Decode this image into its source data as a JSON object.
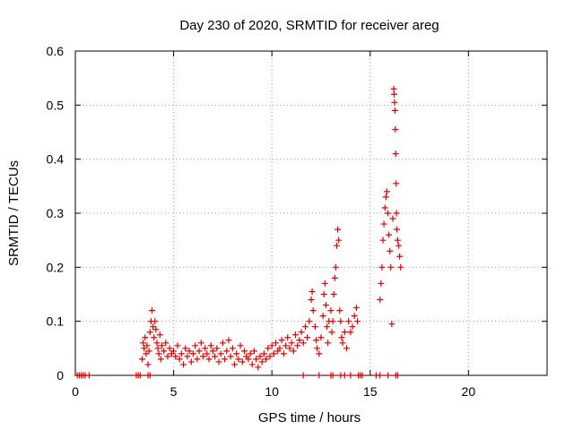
{
  "chart_data": {
    "type": "scatter",
    "title": "Day 230 of 2020, SRMTID for receiver areg",
    "xlabel": "GPS time / hours",
    "ylabel": "SRMTID / TECUs",
    "xlim": [
      0,
      24
    ],
    "ylim": [
      0,
      0.6
    ],
    "xticks": [
      0,
      5,
      10,
      15,
      20
    ],
    "xtick_labels": [
      "0",
      "5",
      "10",
      "15",
      "20"
    ],
    "yticks": [
      0,
      0.1,
      0.2,
      0.3,
      0.4,
      0.5,
      0.6
    ],
    "ytick_labels": [
      "0",
      "0.1",
      "0.2",
      "0.3",
      "0.4",
      "0.5",
      "0.6"
    ],
    "grid": true,
    "marker": "+",
    "marker_color": "#e00000",
    "series": [
      {
        "name": "SRMTID",
        "points": [
          [
            0.1,
            0
          ],
          [
            0.2,
            0
          ],
          [
            0.3,
            0
          ],
          [
            0.4,
            0
          ],
          [
            0.5,
            0
          ],
          [
            0.7,
            0
          ],
          [
            3.1,
            0
          ],
          [
            3.2,
            0
          ],
          [
            3.3,
            0
          ],
          [
            3.7,
            0
          ],
          [
            3.8,
            0
          ],
          [
            3.4,
            0.03
          ],
          [
            3.45,
            0.06
          ],
          [
            3.5,
            0.05
          ],
          [
            3.55,
            0.07
          ],
          [
            3.6,
            0.04
          ],
          [
            3.65,
            0.055
          ],
          [
            3.7,
            0.02
          ],
          [
            3.75,
            0.045
          ],
          [
            3.8,
            0.08
          ],
          [
            3.85,
            0.1
          ],
          [
            3.9,
            0.12
          ],
          [
            3.95,
            0.09
          ],
          [
            4.0,
            0.07
          ],
          [
            4.05,
            0.1
          ],
          [
            4.1,
            0.085
          ],
          [
            4.15,
            0.06
          ],
          [
            4.2,
            0.05
          ],
          [
            4.25,
            0.04
          ],
          [
            4.3,
            0.075
          ],
          [
            4.35,
            0.03
          ],
          [
            4.4,
            0.055
          ],
          [
            4.5,
            0.045
          ],
          [
            4.6,
            0.06
          ],
          [
            4.7,
            0.035
          ],
          [
            4.8,
            0.05
          ],
          [
            4.9,
            0.04
          ],
          [
            5.0,
            0.045
          ],
          [
            5.1,
            0.035
          ],
          [
            5.2,
            0.055
          ],
          [
            5.3,
            0.03
          ],
          [
            5.4,
            0.04
          ],
          [
            5.5,
            0.02
          ],
          [
            5.6,
            0.05
          ],
          [
            5.7,
            0.035
          ],
          [
            5.8,
            0.045
          ],
          [
            5.9,
            0.025
          ],
          [
            6.0,
            0.04
          ],
          [
            6.1,
            0.055
          ],
          [
            6.2,
            0.03
          ],
          [
            6.3,
            0.045
          ],
          [
            6.4,
            0.06
          ],
          [
            6.5,
            0.035
          ],
          [
            6.6,
            0.05
          ],
          [
            6.7,
            0.04
          ],
          [
            6.8,
            0.03
          ],
          [
            6.9,
            0.055
          ],
          [
            7.0,
            0.045
          ],
          [
            7.1,
            0.035
          ],
          [
            7.2,
            0.05
          ],
          [
            7.3,
            0.025
          ],
          [
            7.4,
            0.04
          ],
          [
            7.5,
            0.06
          ],
          [
            7.6,
            0.03
          ],
          [
            7.7,
            0.045
          ],
          [
            7.8,
            0.065
          ],
          [
            7.9,
            0.035
          ],
          [
            8.0,
            0.05
          ],
          [
            8.1,
            0.02
          ],
          [
            8.2,
            0.04
          ],
          [
            8.3,
            0.03
          ],
          [
            8.4,
            0.055
          ],
          [
            8.5,
            0.025
          ],
          [
            8.6,
            0.045
          ],
          [
            8.7,
            0.035
          ],
          [
            8.8,
            0.03
          ],
          [
            8.9,
            0.04
          ],
          [
            9.0,
            0.02
          ],
          [
            9.1,
            0.045
          ],
          [
            9.2,
            0.03
          ],
          [
            9.3,
            0.015
          ],
          [
            9.4,
            0.035
          ],
          [
            9.5,
            0.025
          ],
          [
            9.6,
            0.04
          ],
          [
            9.7,
            0.03
          ],
          [
            9.8,
            0.05
          ],
          [
            9.9,
            0.035
          ],
          [
            10.0,
            0.055
          ],
          [
            10.1,
            0.04
          ],
          [
            10.2,
            0.06
          ],
          [
            10.3,
            0.045
          ],
          [
            10.4,
            0.05
          ],
          [
            10.5,
            0.065
          ],
          [
            10.6,
            0.04
          ],
          [
            10.7,
            0.055
          ],
          [
            10.8,
            0.07
          ],
          [
            10.9,
            0.05
          ],
          [
            11.0,
            0.06
          ],
          [
            11.1,
            0.045
          ],
          [
            11.2,
            0.075
          ],
          [
            11.3,
            0.055
          ],
          [
            11.4,
            0.065
          ],
          [
            11.5,
            0.08
          ],
          [
            11.6,
            0.06
          ],
          [
            11.7,
            0.09
          ],
          [
            11.8,
            0.07
          ],
          [
            11.9,
            0.1
          ],
          [
            12.0,
            0.14
          ],
          [
            12.05,
            0.155
          ],
          [
            12.1,
            0.12
          ],
          [
            12.2,
            0.09
          ],
          [
            12.25,
            0.065
          ],
          [
            12.3,
            0.05
          ],
          [
            12.4,
            0.04
          ],
          [
            12.5,
            0.07
          ],
          [
            12.6,
            0.11
          ],
          [
            12.65,
            0.15
          ],
          [
            12.7,
            0.17
          ],
          [
            12.75,
            0.13
          ],
          [
            12.8,
            0.09
          ],
          [
            12.85,
            0.06
          ],
          [
            12.9,
            0.1
          ],
          [
            13.0,
            0.12
          ],
          [
            13.05,
            0.08
          ],
          [
            13.1,
            0.1
          ],
          [
            13.15,
            0.15
          ],
          [
            13.2,
            0.18
          ],
          [
            13.25,
            0.2
          ],
          [
            13.3,
            0.24
          ],
          [
            13.35,
            0.27
          ],
          [
            13.4,
            0.25
          ],
          [
            13.45,
            0.12
          ],
          [
            13.5,
            0.1
          ],
          [
            13.55,
            0.07
          ],
          [
            13.6,
            0.06
          ],
          [
            13.7,
            0.08
          ],
          [
            13.8,
            0.05
          ],
          [
            13.9,
            0.1
          ],
          [
            14.0,
            0.08
          ],
          [
            14.1,
            0.09
          ],
          [
            14.2,
            0.11
          ],
          [
            14.3,
            0.125
          ],
          [
            14.35,
            0.1
          ],
          [
            11.6,
            0
          ],
          [
            12.4,
            0
          ],
          [
            13.0,
            0
          ],
          [
            13.1,
            0
          ],
          [
            13.5,
            0
          ],
          [
            13.7,
            0
          ],
          [
            14.0,
            0
          ],
          [
            14.4,
            0
          ],
          [
            14.5,
            0
          ],
          [
            14.6,
            0
          ],
          [
            15.3,
            0
          ],
          [
            15.5,
            0
          ],
          [
            15.9,
            0
          ],
          [
            16.3,
            0
          ],
          [
            16.4,
            0
          ],
          [
            15.5,
            0.14
          ],
          [
            15.55,
            0.17
          ],
          [
            15.6,
            0.2
          ],
          [
            15.65,
            0.25
          ],
          [
            15.7,
            0.28
          ],
          [
            15.75,
            0.31
          ],
          [
            15.8,
            0.33
          ],
          [
            15.85,
            0.34
          ],
          [
            15.9,
            0.3
          ],
          [
            15.95,
            0.26
          ],
          [
            16.0,
            0.23
          ],
          [
            16.05,
            0.2
          ],
          [
            16.1,
            0.095
          ],
          [
            16.15,
            0.29
          ],
          [
            16.2,
            0.53
          ],
          [
            16.22,
            0.52
          ],
          [
            16.24,
            0.505
          ],
          [
            16.26,
            0.49
          ],
          [
            16.28,
            0.455
          ],
          [
            16.3,
            0.41
          ],
          [
            16.32,
            0.355
          ],
          [
            16.34,
            0.3
          ],
          [
            16.36,
            0.27
          ],
          [
            16.4,
            0.25
          ],
          [
            16.45,
            0.24
          ],
          [
            16.5,
            0.22
          ],
          [
            16.55,
            0.2
          ]
        ]
      }
    ]
  }
}
